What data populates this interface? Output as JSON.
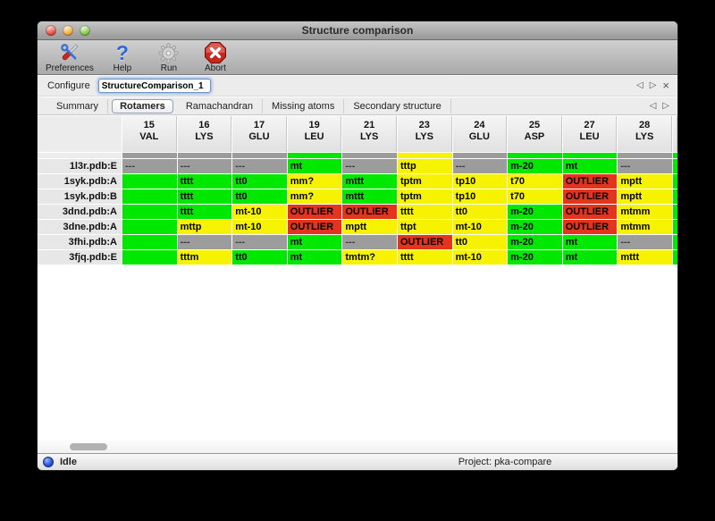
{
  "window": {
    "title": "Structure comparison"
  },
  "toolbar": {
    "buttons": [
      {
        "label": "Preferences",
        "icon": "preferences-tools-icon"
      },
      {
        "label": "Help",
        "icon": "help-question-icon"
      },
      {
        "label": "Run",
        "icon": "run-gear-icon"
      },
      {
        "label": "Abort",
        "icon": "abort-stop-icon"
      }
    ]
  },
  "configure": {
    "label": "Configure",
    "value": "StructureComparison_1"
  },
  "icons": {
    "prev": "◁",
    "next": "▷",
    "close": "×"
  },
  "tabs": {
    "items": [
      {
        "label": "Summary",
        "active": false
      },
      {
        "label": "Rotamers",
        "active": true
      },
      {
        "label": "Ramachandran",
        "active": false
      },
      {
        "label": "Missing atoms",
        "active": false
      },
      {
        "label": "Secondary structure",
        "active": false
      }
    ]
  },
  "colors": {
    "green": "#00e800",
    "yellow": "#f7f300",
    "red": "#e5341d",
    "gray": "#9c9c9c"
  },
  "table": {
    "columns": [
      {
        "number": "15",
        "residue": "VAL"
      },
      {
        "number": "16",
        "residue": "LYS"
      },
      {
        "number": "17",
        "residue": "GLU"
      },
      {
        "number": "19",
        "residue": "LEU"
      },
      {
        "number": "21",
        "residue": "LYS"
      },
      {
        "number": "23",
        "residue": "LYS"
      },
      {
        "number": "24",
        "residue": "GLU"
      },
      {
        "number": "25",
        "residue": "ASP"
      },
      {
        "number": "27",
        "residue": "LEU"
      },
      {
        "number": "28",
        "residue": "LYS"
      }
    ],
    "strip_colors": [
      "gray",
      "gray",
      "gray",
      "green",
      "gray",
      "yellow",
      "gray",
      "green",
      "green",
      "gray"
    ],
    "strip_sliver": "green",
    "rows": [
      {
        "label": "1l3r.pdb:E",
        "sliver": "green",
        "cells": [
          {
            "text": "---",
            "color": "gray"
          },
          {
            "text": "---",
            "color": "gray"
          },
          {
            "text": "---",
            "color": "gray"
          },
          {
            "text": "mt",
            "color": "green"
          },
          {
            "text": "---",
            "color": "gray"
          },
          {
            "text": "tttp",
            "color": "yellow"
          },
          {
            "text": "---",
            "color": "gray"
          },
          {
            "text": "m-20",
            "color": "green"
          },
          {
            "text": "mt",
            "color": "green"
          },
          {
            "text": "---",
            "color": "gray"
          }
        ]
      },
      {
        "label": "1syk.pdb:A",
        "sliver": "green",
        "cells": [
          {
            "text": "",
            "color": "green"
          },
          {
            "text": "tttt",
            "color": "green"
          },
          {
            "text": "tt0",
            "color": "green"
          },
          {
            "text": "mm?",
            "color": "yellow"
          },
          {
            "text": "mttt",
            "color": "green"
          },
          {
            "text": "tptm",
            "color": "yellow"
          },
          {
            "text": "tp10",
            "color": "yellow"
          },
          {
            "text": "t70",
            "color": "yellow"
          },
          {
            "text": "OUTLIER",
            "color": "red"
          },
          {
            "text": "mptt",
            "color": "yellow"
          }
        ]
      },
      {
        "label": "1syk.pdb:B",
        "sliver": "green",
        "cells": [
          {
            "text": "",
            "color": "green"
          },
          {
            "text": "tttt",
            "color": "green"
          },
          {
            "text": "tt0",
            "color": "green"
          },
          {
            "text": "mm?",
            "color": "yellow"
          },
          {
            "text": "mttt",
            "color": "green"
          },
          {
            "text": "tptm",
            "color": "yellow"
          },
          {
            "text": "tp10",
            "color": "yellow"
          },
          {
            "text": "t70",
            "color": "yellow"
          },
          {
            "text": "OUTLIER",
            "color": "red"
          },
          {
            "text": "mptt",
            "color": "yellow"
          }
        ]
      },
      {
        "label": "3dnd.pdb:A",
        "sliver": "green",
        "cells": [
          {
            "text": "",
            "color": "green"
          },
          {
            "text": "tttt",
            "color": "green"
          },
          {
            "text": "mt-10",
            "color": "yellow"
          },
          {
            "text": "OUTLIER",
            "color": "red"
          },
          {
            "text": "OUTLIER",
            "color": "red"
          },
          {
            "text": "tttt",
            "color": "yellow"
          },
          {
            "text": "tt0",
            "color": "yellow"
          },
          {
            "text": "m-20",
            "color": "green"
          },
          {
            "text": "OUTLIER",
            "color": "red"
          },
          {
            "text": "mtmm",
            "color": "yellow"
          }
        ]
      },
      {
        "label": "3dne.pdb:A",
        "sliver": "green",
        "cells": [
          {
            "text": "",
            "color": "green"
          },
          {
            "text": "mttp",
            "color": "yellow"
          },
          {
            "text": "mt-10",
            "color": "yellow"
          },
          {
            "text": "OUTLIER",
            "color": "red"
          },
          {
            "text": "mptt",
            "color": "yellow"
          },
          {
            "text": "ttpt",
            "color": "yellow"
          },
          {
            "text": "mt-10",
            "color": "yellow"
          },
          {
            "text": "m-20",
            "color": "green"
          },
          {
            "text": "OUTLIER",
            "color": "red"
          },
          {
            "text": "mtmm",
            "color": "yellow"
          }
        ]
      },
      {
        "label": "3fhi.pdb:A",
        "sliver": "green",
        "cells": [
          {
            "text": "",
            "color": "green"
          },
          {
            "text": "---",
            "color": "gray"
          },
          {
            "text": "---",
            "color": "gray"
          },
          {
            "text": "mt",
            "color": "green"
          },
          {
            "text": "---",
            "color": "gray"
          },
          {
            "text": "OUTLIER",
            "color": "red"
          },
          {
            "text": "tt0",
            "color": "yellow"
          },
          {
            "text": "m-20",
            "color": "green"
          },
          {
            "text": "mt",
            "color": "green"
          },
          {
            "text": "---",
            "color": "gray"
          }
        ]
      },
      {
        "label": "3fjq.pdb:E",
        "sliver": "green",
        "cells": [
          {
            "text": "",
            "color": "green"
          },
          {
            "text": "tttm",
            "color": "yellow"
          },
          {
            "text": "tt0",
            "color": "green"
          },
          {
            "text": "mt",
            "color": "green"
          },
          {
            "text": "tmtm?",
            "color": "yellow"
          },
          {
            "text": "tttt",
            "color": "yellow"
          },
          {
            "text": "mt-10",
            "color": "yellow"
          },
          {
            "text": "m-20",
            "color": "green"
          },
          {
            "text": "mt",
            "color": "green"
          },
          {
            "text": "mttt",
            "color": "yellow"
          }
        ]
      }
    ]
  },
  "status": {
    "idle": "Idle",
    "project": "Project: pka-compare"
  }
}
